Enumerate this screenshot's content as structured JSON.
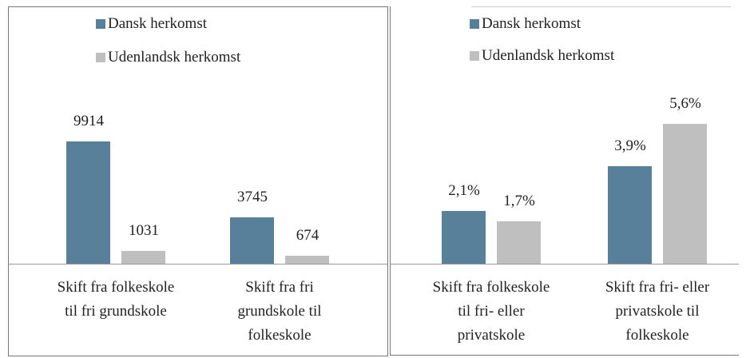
{
  "chart_data": [
    {
      "type": "bar",
      "categories": [
        "Skift fra folkeskole\ntil fri grundskole",
        "Skift fra fri\ngrundskole til\nfolkeskole"
      ],
      "series": [
        {
          "name": "Dansk herkomst",
          "color": "#58809b",
          "values": [
            9914,
            3745
          ]
        },
        {
          "name": "Udenlandsk herkomst",
          "color": "#bfbfbf",
          "values": [
            1031,
            674
          ]
        }
      ]
    },
    {
      "type": "bar",
      "categories": [
        "Skift fra folkeskole\ntil fri- eller\nprivatskole",
        "Skift fra fri- eller\nprivatskole til\nfolkeskole"
      ],
      "series": [
        {
          "name": "Dansk herkomst",
          "color": "#58809b",
          "values": [
            2.1,
            3.9
          ],
          "value_labels": [
            "2,1%",
            "3,9%"
          ]
        },
        {
          "name": "Udenlandsk herkomst",
          "color": "#bfbfbf",
          "values": [
            1.7,
            5.6
          ],
          "value_labels": [
            "1,7%",
            "5,6%"
          ]
        }
      ]
    }
  ]
}
